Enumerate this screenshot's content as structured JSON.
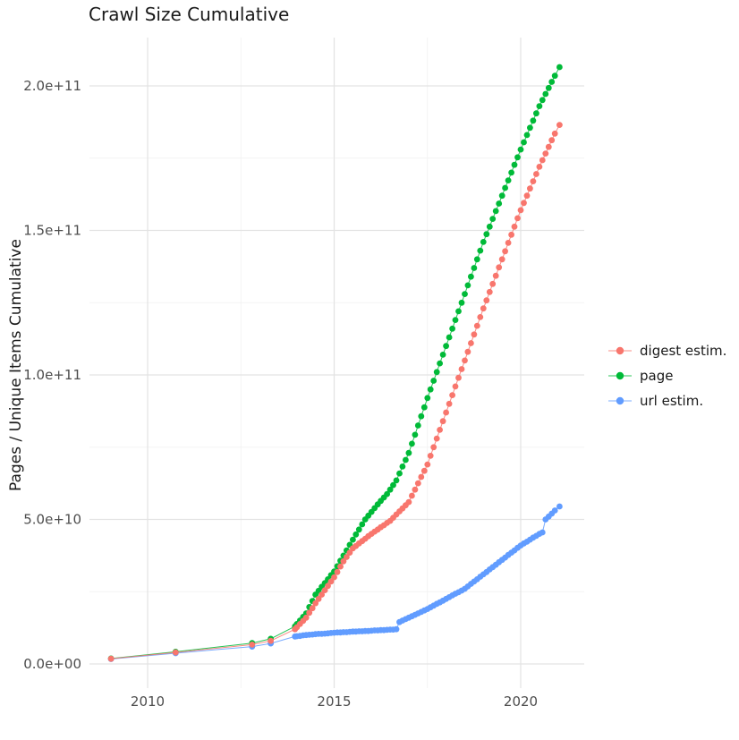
{
  "title": "Crawl Size Cumulative",
  "y_axis_title": "Pages / Unique Items Cumulative",
  "axes": {
    "x": {
      "ticks": [
        {
          "label": "2010",
          "value": 2010
        },
        {
          "label": "2015",
          "value": 2015
        },
        {
          "label": "2020",
          "value": 2020
        }
      ],
      "minor": [
        2012.5,
        2017.5
      ]
    },
    "y": {
      "unit": "1e10",
      "ticks": [
        {
          "label": "0.0e+00",
          "value": 0
        },
        {
          "label": "5.0e+10",
          "value": 5
        },
        {
          "label": "1.0e+11",
          "value": 10
        },
        {
          "label": "1.5e+11",
          "value": 15
        },
        {
          "label": "2.0e+11",
          "value": 20
        }
      ],
      "minor": [
        2.5,
        7.5,
        12.5,
        17.5
      ]
    }
  },
  "legend": {
    "items": [
      {
        "label": "digest estim.",
        "color": "#F8766D"
      },
      {
        "label": "page",
        "color": "#00BA38"
      },
      {
        "label": "url estim.",
        "color": "#619CFF"
      }
    ]
  },
  "chart_data": {
    "type": "line",
    "title": "Crawl Size Cumulative",
    "xlabel": "",
    "ylabel": "Pages / Unique Items Cumulative",
    "x_range": [
      2009.02,
      2021.04
    ],
    "ylim": [
      0,
      205000000000.0
    ],
    "grid": true,
    "legend_position": "right",
    "y_values_unit": 10000000000.0,
    "series": [
      {
        "name": "digest estim.",
        "color": "#F8766D",
        "points": [
          [
            2009.02,
            0.18
          ],
          [
            2010.75,
            0.4
          ],
          [
            2012.8,
            0.67
          ],
          [
            2013.3,
            0.8
          ],
          [
            2013.95,
            1.2
          ],
          [
            2014.0,
            1.27
          ],
          [
            2014.083,
            1.38
          ],
          [
            2014.167,
            1.49
          ],
          [
            2014.25,
            1.6
          ],
          [
            2014.333,
            1.77
          ],
          [
            2014.417,
            1.93
          ],
          [
            2014.5,
            2.1
          ],
          [
            2014.583,
            2.25
          ],
          [
            2014.667,
            2.4
          ],
          [
            2014.75,
            2.55
          ],
          [
            2014.833,
            2.7
          ],
          [
            2014.917,
            2.85
          ],
          [
            2015.0,
            3.0
          ],
          [
            2015.083,
            3.18
          ],
          [
            2015.167,
            3.37
          ],
          [
            2015.25,
            3.55
          ],
          [
            2015.333,
            3.7
          ],
          [
            2015.417,
            3.85
          ],
          [
            2015.5,
            4.0
          ],
          [
            2015.583,
            4.08
          ],
          [
            2015.667,
            4.17
          ],
          [
            2015.75,
            4.25
          ],
          [
            2015.833,
            4.33
          ],
          [
            2015.917,
            4.42
          ],
          [
            2016.0,
            4.5
          ],
          [
            2016.083,
            4.58
          ],
          [
            2016.167,
            4.65
          ],
          [
            2016.25,
            4.73
          ],
          [
            2016.333,
            4.8
          ],
          [
            2016.417,
            4.88
          ],
          [
            2016.5,
            4.95
          ],
          [
            2016.583,
            5.06
          ],
          [
            2016.667,
            5.17
          ],
          [
            2016.75,
            5.28
          ],
          [
            2016.833,
            5.38
          ],
          [
            2016.917,
            5.49
          ],
          [
            2017.0,
            5.6
          ],
          [
            2017.083,
            5.82
          ],
          [
            2017.167,
            6.03
          ],
          [
            2017.25,
            6.25
          ],
          [
            2017.333,
            6.47
          ],
          [
            2017.417,
            6.68
          ],
          [
            2017.5,
            6.9
          ],
          [
            2017.583,
            7.2
          ],
          [
            2017.667,
            7.5
          ],
          [
            2017.75,
            7.8
          ],
          [
            2017.833,
            8.1
          ],
          [
            2017.917,
            8.4
          ],
          [
            2018.0,
            8.7
          ],
          [
            2018.083,
            9.0
          ],
          [
            2018.167,
            9.3
          ],
          [
            2018.25,
            9.6
          ],
          [
            2018.333,
            9.9
          ],
          [
            2018.417,
            10.2
          ],
          [
            2018.5,
            10.5
          ],
          [
            2018.583,
            10.8
          ],
          [
            2018.667,
            11.1
          ],
          [
            2018.75,
            11.4
          ],
          [
            2018.833,
            11.7
          ],
          [
            2018.917,
            12.0
          ],
          [
            2019.0,
            12.3
          ],
          [
            2019.083,
            12.58
          ],
          [
            2019.167,
            12.87
          ],
          [
            2019.25,
            13.15
          ],
          [
            2019.333,
            13.43
          ],
          [
            2019.417,
            13.72
          ],
          [
            2019.5,
            14.0
          ],
          [
            2019.583,
            14.28
          ],
          [
            2019.667,
            14.57
          ],
          [
            2019.75,
            14.85
          ],
          [
            2019.833,
            15.13
          ],
          [
            2019.917,
            15.42
          ],
          [
            2020.0,
            15.7
          ],
          [
            2020.083,
            15.95
          ],
          [
            2020.167,
            16.2
          ],
          [
            2020.25,
            16.45
          ],
          [
            2020.333,
            16.7
          ],
          [
            2020.417,
            16.95
          ],
          [
            2020.5,
            17.2
          ],
          [
            2020.583,
            17.43
          ],
          [
            2020.667,
            17.66
          ],
          [
            2020.75,
            17.89
          ],
          [
            2020.833,
            18.12
          ],
          [
            2020.917,
            18.35
          ],
          [
            2021.04,
            18.65
          ]
        ]
      },
      {
        "name": "page",
        "color": "#00BA38",
        "points": [
          [
            2009.02,
            0.19
          ],
          [
            2010.75,
            0.42
          ],
          [
            2012.8,
            0.72
          ],
          [
            2013.3,
            0.87
          ],
          [
            2013.95,
            1.3
          ],
          [
            2014.0,
            1.38
          ],
          [
            2014.083,
            1.5
          ],
          [
            2014.167,
            1.63
          ],
          [
            2014.25,
            1.75
          ],
          [
            2014.333,
            1.97
          ],
          [
            2014.417,
            2.18
          ],
          [
            2014.5,
            2.4
          ],
          [
            2014.583,
            2.53
          ],
          [
            2014.667,
            2.67
          ],
          [
            2014.75,
            2.8
          ],
          [
            2014.833,
            2.93
          ],
          [
            2014.917,
            3.07
          ],
          [
            2015.0,
            3.2
          ],
          [
            2015.083,
            3.38
          ],
          [
            2015.167,
            3.57
          ],
          [
            2015.25,
            3.75
          ],
          [
            2015.333,
            3.93
          ],
          [
            2015.417,
            4.12
          ],
          [
            2015.5,
            4.3
          ],
          [
            2015.583,
            4.48
          ],
          [
            2015.667,
            4.65
          ],
          [
            2015.75,
            4.83
          ],
          [
            2015.833,
            5.0
          ],
          [
            2015.917,
            5.13
          ],
          [
            2016.0,
            5.26
          ],
          [
            2016.083,
            5.39
          ],
          [
            2016.167,
            5.52
          ],
          [
            2016.25,
            5.64
          ],
          [
            2016.333,
            5.76
          ],
          [
            2016.417,
            5.88
          ],
          [
            2016.5,
            6.03
          ],
          [
            2016.583,
            6.19
          ],
          [
            2016.667,
            6.35
          ],
          [
            2016.75,
            6.59
          ],
          [
            2016.833,
            6.83
          ],
          [
            2016.917,
            7.06
          ],
          [
            2017.0,
            7.3
          ],
          [
            2017.083,
            7.62
          ],
          [
            2017.167,
            7.93
          ],
          [
            2017.25,
            8.25
          ],
          [
            2017.333,
            8.57
          ],
          [
            2017.417,
            8.88
          ],
          [
            2017.5,
            9.2
          ],
          [
            2017.583,
            9.5
          ],
          [
            2017.667,
            9.8
          ],
          [
            2017.75,
            10.1
          ],
          [
            2017.833,
            10.4
          ],
          [
            2017.917,
            10.7
          ],
          [
            2018.0,
            11.0
          ],
          [
            2018.083,
            11.3
          ],
          [
            2018.167,
            11.6
          ],
          [
            2018.25,
            11.9
          ],
          [
            2018.333,
            12.2
          ],
          [
            2018.417,
            12.5
          ],
          [
            2018.5,
            12.8
          ],
          [
            2018.583,
            13.1
          ],
          [
            2018.667,
            13.4
          ],
          [
            2018.75,
            13.7
          ],
          [
            2018.833,
            14.0
          ],
          [
            2018.917,
            14.3
          ],
          [
            2019.0,
            14.6
          ],
          [
            2019.083,
            14.87
          ],
          [
            2019.167,
            15.13
          ],
          [
            2019.25,
            15.4
          ],
          [
            2019.333,
            15.67
          ],
          [
            2019.417,
            15.93
          ],
          [
            2019.5,
            16.2
          ],
          [
            2019.583,
            16.47
          ],
          [
            2019.667,
            16.73
          ],
          [
            2019.75,
            17.0
          ],
          [
            2019.833,
            17.27
          ],
          [
            2019.917,
            17.53
          ],
          [
            2020.0,
            17.8
          ],
          [
            2020.083,
            18.05
          ],
          [
            2020.167,
            18.3
          ],
          [
            2020.25,
            18.55
          ],
          [
            2020.333,
            18.8
          ],
          [
            2020.417,
            19.05
          ],
          [
            2020.5,
            19.3
          ],
          [
            2020.583,
            19.51
          ],
          [
            2020.667,
            19.72
          ],
          [
            2020.75,
            19.93
          ],
          [
            2020.833,
            20.14
          ],
          [
            2020.917,
            20.35
          ],
          [
            2021.04,
            20.65
          ]
        ]
      },
      {
        "name": "url estim.",
        "color": "#619CFF",
        "points": [
          [
            2009.02,
            0.17
          ],
          [
            2010.75,
            0.37
          ],
          [
            2012.8,
            0.6
          ],
          [
            2013.3,
            0.71
          ],
          [
            2013.95,
            0.95
          ],
          [
            2014.0,
            0.96
          ],
          [
            2014.083,
            0.97
          ],
          [
            2014.167,
            0.99
          ],
          [
            2014.25,
            1.0
          ],
          [
            2014.333,
            1.01
          ],
          [
            2014.417,
            1.02
          ],
          [
            2014.5,
            1.03
          ],
          [
            2014.583,
            1.04
          ],
          [
            2014.667,
            1.04
          ],
          [
            2014.75,
            1.05
          ],
          [
            2014.833,
            1.06
          ],
          [
            2014.917,
            1.07
          ],
          [
            2015.0,
            1.08
          ],
          [
            2015.083,
            1.09
          ],
          [
            2015.167,
            1.09
          ],
          [
            2015.25,
            1.1
          ],
          [
            2015.333,
            1.1
          ],
          [
            2015.417,
            1.11
          ],
          [
            2015.5,
            1.12
          ],
          [
            2015.583,
            1.12
          ],
          [
            2015.667,
            1.13
          ],
          [
            2015.75,
            1.13
          ],
          [
            2015.833,
            1.14
          ],
          [
            2015.917,
            1.14
          ],
          [
            2016.0,
            1.15
          ],
          [
            2016.083,
            1.16
          ],
          [
            2016.167,
            1.16
          ],
          [
            2016.25,
            1.17
          ],
          [
            2016.333,
            1.17
          ],
          [
            2016.417,
            1.18
          ],
          [
            2016.5,
            1.19
          ],
          [
            2016.583,
            1.19
          ],
          [
            2016.667,
            1.2
          ],
          [
            2016.75,
            1.45
          ],
          [
            2016.833,
            1.5
          ],
          [
            2016.917,
            1.55
          ],
          [
            2017.0,
            1.6
          ],
          [
            2017.083,
            1.65
          ],
          [
            2017.167,
            1.7
          ],
          [
            2017.25,
            1.75
          ],
          [
            2017.333,
            1.8
          ],
          [
            2017.417,
            1.85
          ],
          [
            2017.5,
            1.9
          ],
          [
            2017.583,
            1.96
          ],
          [
            2017.667,
            2.02
          ],
          [
            2017.75,
            2.08
          ],
          [
            2017.833,
            2.13
          ],
          [
            2017.917,
            2.19
          ],
          [
            2018.0,
            2.25
          ],
          [
            2018.083,
            2.31
          ],
          [
            2018.167,
            2.37
          ],
          [
            2018.25,
            2.43
          ],
          [
            2018.333,
            2.48
          ],
          [
            2018.417,
            2.54
          ],
          [
            2018.5,
            2.6
          ],
          [
            2018.583,
            2.68
          ],
          [
            2018.667,
            2.77
          ],
          [
            2018.75,
            2.85
          ],
          [
            2018.833,
            2.93
          ],
          [
            2018.917,
            3.02
          ],
          [
            2019.0,
            3.1
          ],
          [
            2019.083,
            3.18
          ],
          [
            2019.167,
            3.27
          ],
          [
            2019.25,
            3.35
          ],
          [
            2019.333,
            3.43
          ],
          [
            2019.417,
            3.52
          ],
          [
            2019.5,
            3.6
          ],
          [
            2019.583,
            3.68
          ],
          [
            2019.667,
            3.77
          ],
          [
            2019.75,
            3.85
          ],
          [
            2019.833,
            3.93
          ],
          [
            2019.917,
            4.02
          ],
          [
            2020.0,
            4.1
          ],
          [
            2020.083,
            4.17
          ],
          [
            2020.167,
            4.23
          ],
          [
            2020.25,
            4.3
          ],
          [
            2020.333,
            4.37
          ],
          [
            2020.417,
            4.43
          ],
          [
            2020.5,
            4.5
          ],
          [
            2020.583,
            4.55
          ],
          [
            2020.667,
            5.0
          ],
          [
            2020.75,
            5.1
          ],
          [
            2020.833,
            5.2
          ],
          [
            2020.917,
            5.31
          ],
          [
            2021.04,
            5.45
          ]
        ]
      }
    ]
  }
}
